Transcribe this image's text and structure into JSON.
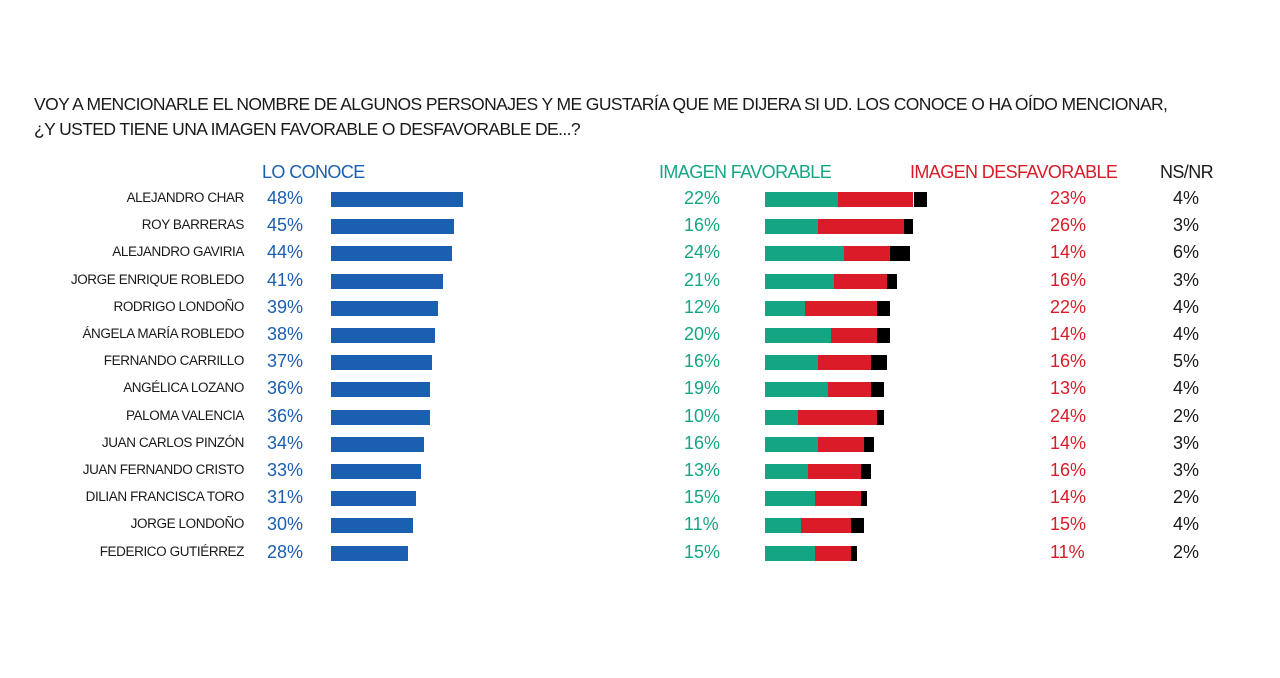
{
  "question": {
    "line1": "VOY A MENCIONARLE EL NOMBRE DE ALGUNOS PERSONAJES Y ME GUSTARÍA QUE ME DIJERA SI UD. LOS CONOCE O HA OÍDO MENCIONAR,",
    "line2": "¿Y USTED TIENE UNA IMAGEN FAVORABLE O DESFAVORABLE DE...?"
  },
  "colors": {
    "known": "#1a5fb0",
    "favorable": "#14a683",
    "unfavorable": "#d91c27",
    "nsnr": "#000000"
  },
  "chart_data": {
    "type": "bar",
    "title": "VOY A MENCIONARLE EL NOMBRE DE ALGUNOS PERSONAJES Y ME GUSTARÍA QUE ME DIJERA SI UD. LOS CONOCE O HA OÍDO MENCIONAR, ¿Y USTED TIENE UNA IMAGEN FAVORABLE O DESFAVORABLE DE...?",
    "headers": {
      "known": "LO CONOCE",
      "favorable": "IMAGEN FAVORABLE",
      "unfavorable": "IMAGEN DESFAVORABLE",
      "nsnr": "NS/NR"
    },
    "unit": "%",
    "categories": [
      "ALEJANDRO CHAR",
      "ROY BARRERAS",
      "ALEJANDRO GAVIRIA",
      "JORGE ENRIQUE ROBLEDO",
      "RODRIGO LONDOÑO",
      "ÁNGELA MARÍA ROBLEDO",
      "FERNANDO CARRILLO",
      "ANGÉLICA LOZANO",
      "PALOMA VALENCIA",
      "JUAN CARLOS PINZÓN",
      "JUAN FERNANDO CRISTO",
      "DILIAN FRANCISCA TORO",
      "JORGE LONDOÑO",
      "FEDERICO GUTIÉRREZ"
    ],
    "series": [
      {
        "name": "LO CONOCE",
        "values": [
          48,
          45,
          44,
          41,
          39,
          38,
          37,
          36,
          36,
          34,
          33,
          31,
          30,
          28
        ]
      },
      {
        "name": "IMAGEN FAVORABLE",
        "values": [
          22,
          16,
          24,
          21,
          12,
          20,
          16,
          19,
          10,
          16,
          13,
          15,
          11,
          15
        ]
      },
      {
        "name": "IMAGEN DESFAVORABLE",
        "values": [
          23,
          26,
          14,
          16,
          22,
          14,
          16,
          13,
          24,
          14,
          16,
          14,
          15,
          11
        ]
      },
      {
        "name": "NS/NR",
        "values": [
          4,
          3,
          6,
          3,
          4,
          4,
          5,
          4,
          2,
          3,
          3,
          2,
          4,
          2
        ]
      }
    ]
  }
}
